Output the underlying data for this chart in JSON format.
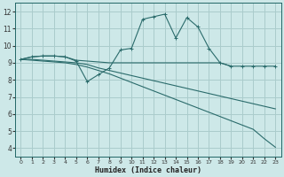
{
  "xlabel": "Humidex (Indice chaleur)",
  "background_color": "#cde8e8",
  "grid_color": "#aacccc",
  "line_color": "#2a6b6b",
  "xlim": [
    -0.5,
    23.5
  ],
  "ylim": [
    3.5,
    12.5
  ],
  "xticks": [
    0,
    1,
    2,
    3,
    4,
    5,
    6,
    7,
    8,
    9,
    10,
    11,
    12,
    13,
    14,
    15,
    16,
    17,
    18,
    19,
    20,
    21,
    22,
    23
  ],
  "yticks": [
    4,
    5,
    6,
    7,
    8,
    9,
    10,
    11,
    12
  ],
  "line_zigzag_x": [
    0,
    1,
    2,
    3,
    4,
    5,
    6,
    7,
    8,
    9,
    10,
    11,
    12,
    13,
    14,
    15,
    16,
    17,
    18,
    19,
    20,
    21,
    22,
    23
  ],
  "line_zigzag_y": [
    9.2,
    9.35,
    9.4,
    9.4,
    9.35,
    9.1,
    7.9,
    8.3,
    8.7,
    9.75,
    9.85,
    11.55,
    11.7,
    11.85,
    10.45,
    11.65,
    11.1,
    9.85,
    9.0,
    8.8,
    8.8,
    8.8,
    8.8,
    8.8
  ],
  "line_flat_x": [
    0,
    1,
    2,
    3,
    4,
    5,
    6,
    7,
    8,
    9,
    10,
    11,
    12,
    13,
    14,
    15,
    16,
    17,
    18,
    19
  ],
  "line_flat_y": [
    9.2,
    9.35,
    9.4,
    9.4,
    9.35,
    9.15,
    9.1,
    9.05,
    9.0,
    9.0,
    9.0,
    9.0,
    9.0,
    9.0,
    9.0,
    9.0,
    9.0,
    9.0,
    9.0,
    8.8
  ],
  "line_mid_x": [
    0,
    1,
    2,
    3,
    4,
    5,
    6,
    7,
    8,
    9,
    10,
    11,
    12,
    13,
    14,
    15,
    16,
    17,
    18,
    19,
    20,
    21,
    22,
    23
  ],
  "line_mid_y": [
    9.2,
    9.2,
    9.15,
    9.1,
    9.05,
    9.0,
    8.9,
    8.7,
    8.55,
    8.4,
    8.25,
    8.1,
    7.95,
    7.8,
    7.65,
    7.5,
    7.35,
    7.2,
    7.05,
    6.9,
    6.75,
    6.6,
    6.45,
    6.3
  ],
  "line_drop_x": [
    0,
    1,
    2,
    3,
    4,
    5,
    6,
    7,
    8,
    9,
    10,
    11,
    12,
    13,
    14,
    15,
    16,
    17,
    18,
    19,
    20,
    21,
    22,
    23
  ],
  "line_drop_y": [
    9.2,
    9.15,
    9.1,
    9.05,
    9.0,
    8.9,
    8.75,
    8.55,
    8.35,
    8.1,
    7.85,
    7.6,
    7.35,
    7.1,
    6.85,
    6.6,
    6.35,
    6.1,
    5.85,
    5.6,
    5.35,
    5.1,
    4.55,
    4.05
  ]
}
